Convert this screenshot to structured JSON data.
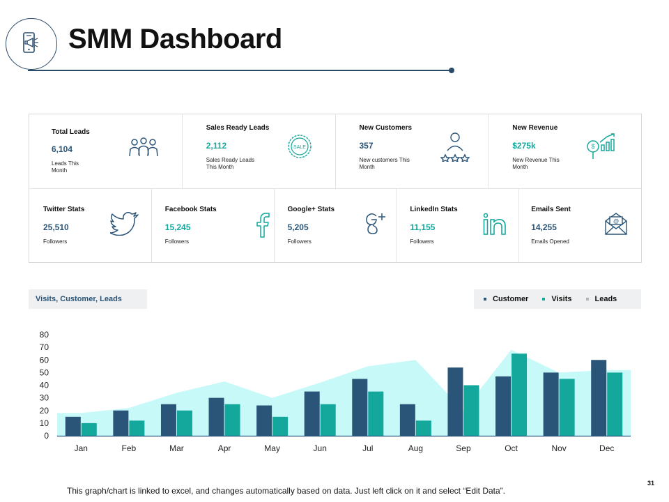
{
  "header": {
    "title": "SMM Dashboard",
    "logo_icon": "smartphone-megaphone-icon"
  },
  "stats": {
    "row1": [
      {
        "label": "Total Leads",
        "value": "6,104",
        "sub": "Leads This Month",
        "icon": "people-group-icon",
        "value_color": "#2b5578"
      },
      {
        "label": "Sales Ready Leads",
        "value": "2,112",
        "sub": "Sales Ready Leads This Month",
        "icon": "sale-badge-icon",
        "value_color": "#14a89c"
      },
      {
        "label": "New Customers",
        "value": "357",
        "sub": "New customers This Month",
        "icon": "customer-stars-icon",
        "value_color": "#2b5578"
      },
      {
        "label": "New Revenue",
        "value": "$275k",
        "sub": "New Revenue This Month",
        "icon": "revenue-growth-icon",
        "value_color": "#14a89c"
      }
    ],
    "row2": [
      {
        "label": "Twitter Stats",
        "value": "25,510",
        "sub": "Followers",
        "icon": "twitter-icon",
        "value_color": "#2b5578"
      },
      {
        "label": "Facebook Stats",
        "value": "15,245",
        "sub": "Followers",
        "icon": "facebook-icon",
        "value_color": "#14a89c"
      },
      {
        "label": "Google+ Stats",
        "value": "5,205",
        "sub": "Followers",
        "icon": "google-plus-icon",
        "value_color": "#2b5578"
      },
      {
        "label": "LinkedIn Stats",
        "value": "11,155",
        "sub": "Followers",
        "icon": "linkedin-icon",
        "value_color": "#14a89c"
      },
      {
        "label": "Emails Sent",
        "value": "14,255",
        "sub": "Emails Opened",
        "icon": "email-icon",
        "value_color": "#2b5578"
      }
    ]
  },
  "chart_label": "Visits, Customer, Leads",
  "legend": [
    {
      "name": "Customer",
      "color": "#2b5578"
    },
    {
      "name": "Visits",
      "color": "#14a89c"
    },
    {
      "name": "Leads",
      "color": "#b4b4b4"
    }
  ],
  "chart_data": {
    "type": "bar",
    "categories": [
      "Jan",
      "Feb",
      "Mar",
      "Apr",
      "May",
      "Jun",
      "Jul",
      "Aug",
      "Sep",
      "Oct",
      "Nov",
      "Dec"
    ],
    "series": [
      {
        "name": "Customer",
        "type": "bar",
        "color": "#2b5578",
        "values": [
          15,
          20,
          25,
          30,
          24,
          35,
          45,
          25,
          54,
          47,
          50,
          60
        ]
      },
      {
        "name": "Visits",
        "type": "bar",
        "color": "#14a89c",
        "values": [
          10,
          12,
          20,
          25,
          15,
          25,
          35,
          12,
          40,
          65,
          45,
          50
        ]
      },
      {
        "name": "Leads",
        "type": "area",
        "color": "#c8f9f9",
        "values": [
          18,
          22,
          34,
          43,
          30,
          42,
          55,
          60,
          20,
          68,
          50,
          52
        ]
      }
    ],
    "yticks": [
      0,
      10,
      20,
      30,
      40,
      50,
      60,
      70,
      80
    ],
    "ylim": [
      0,
      80
    ],
    "grid": false,
    "legend_position": "top-right"
  },
  "footer": {
    "note": "This graph/chart is linked to excel, and changes automatically based on data.  Just left click on it and select “Edit Data”.",
    "page_number": "31"
  }
}
